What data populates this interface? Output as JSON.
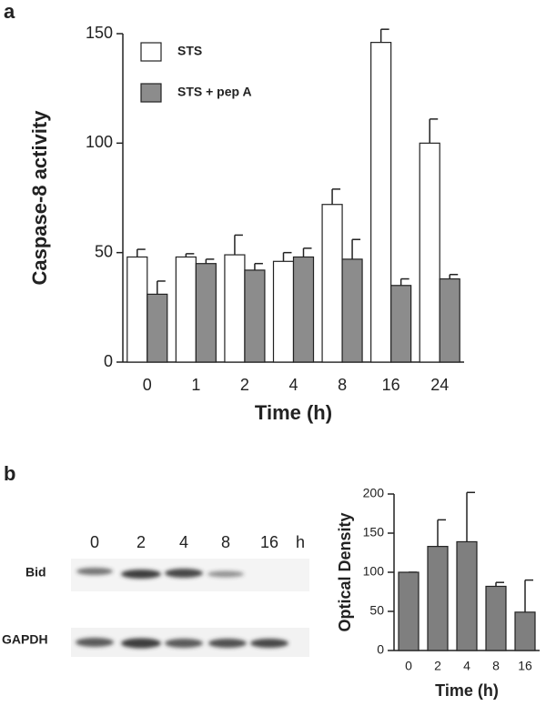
{
  "panel_labels": [
    "a",
    "b"
  ],
  "chart_data": [
    {
      "type": "bar",
      "x_label": "Time (h)",
      "y_label": "Caspase-8 activity",
      "categories": [
        "0",
        "1",
        "2",
        "4",
        "8",
        "16",
        "24"
      ],
      "series": [
        {
          "name": "STS",
          "color": "#ffffff",
          "values": [
            48,
            48,
            49,
            46,
            72,
            146,
            100
          ],
          "errors": [
            3.5,
            1.5,
            9,
            4,
            7,
            6,
            11
          ]
        },
        {
          "name": "STS + pep A",
          "color": "#8c8c8c",
          "values": [
            31,
            45,
            42,
            48,
            47,
            35,
            38
          ],
          "errors": [
            6,
            2,
            3,
            4,
            9,
            3,
            2
          ]
        }
      ],
      "ylim": [
        0,
        150
      ],
      "yticks": [
        0,
        50,
        100,
        150
      ],
      "legend": "upper left"
    },
    {
      "type": "bar",
      "x_label": "Time (h)",
      "y_label": "Optical Density",
      "categories": [
        "0",
        "2",
        "4",
        "8",
        "16"
      ],
      "values": [
        100,
        133,
        139,
        82,
        49
      ],
      "errors": [
        0,
        34,
        63,
        5,
        41
      ],
      "color": "#7f7f7f",
      "ylim": [
        0,
        200
      ],
      "yticks": [
        0,
        50,
        100,
        150,
        200
      ]
    }
  ],
  "blot": {
    "lanes": [
      "0",
      "2",
      "4",
      "8",
      "16"
    ],
    "unit": "h",
    "rows": [
      "Bid",
      "GAPDH"
    ]
  }
}
